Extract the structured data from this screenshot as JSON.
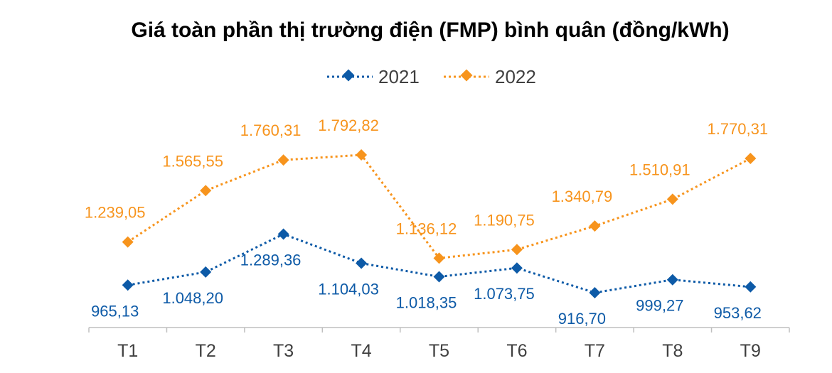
{
  "chart_data": {
    "type": "line",
    "title": "Giá toàn phần thị trường điện (FMP) bình quân (đồng/kWh)",
    "xlabel": "",
    "ylabel": "",
    "categories": [
      "T1",
      "T2",
      "T3",
      "T4",
      "T5",
      "T6",
      "T7",
      "T8",
      "T9"
    ],
    "ylim": [
      700,
      2100
    ],
    "grid": false,
    "legend": "top-center",
    "series": [
      {
        "name": "2021",
        "color": "#0D5AA7",
        "marker": "diamond",
        "line_style": "dotted",
        "label_position": "below",
        "values": [
          965.13,
          1048.2,
          1289.36,
          1104.03,
          1018.35,
          1073.75,
          916.7,
          999.27,
          953.62
        ],
        "labels": [
          "965,13",
          "1.048,20",
          "1.289,36",
          "1.104,03",
          "1.018,35",
          "1.073,75",
          "916,70",
          "999,27",
          "953,62"
        ]
      },
      {
        "name": "2022",
        "color": "#F7941D",
        "marker": "diamond",
        "line_style": "dotted",
        "label_position": "above",
        "values": [
          1239.05,
          1565.55,
          1760.31,
          1792.82,
          1136.12,
          1190.75,
          1340.79,
          1510.91,
          1770.31
        ],
        "labels": [
          "1.239,05",
          "1.565,55",
          "1.760,31",
          "1.792,82",
          "1.136,12",
          "1.190,75",
          "1.340,79",
          "1.510,91",
          "1.770,31"
        ]
      }
    ]
  }
}
